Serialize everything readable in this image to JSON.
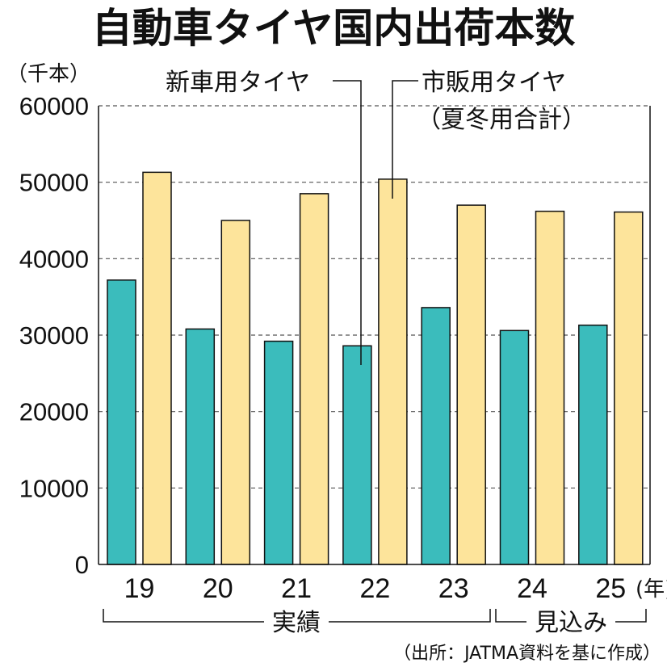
{
  "chart_data": {
    "type": "bar",
    "title": "自動車タイヤ国内出荷本数",
    "y_unit": "（千本）",
    "x_unit": "(年)",
    "categories": [
      "19",
      "20",
      "21",
      "22",
      "23",
      "24",
      "25"
    ],
    "series": [
      {
        "name": "新車用タイヤ",
        "color": "#3bbcbc",
        "values": [
          37200,
          30800,
          29200,
          28600,
          33600,
          30600,
          31300
        ]
      },
      {
        "name": "市販用タイヤ（夏冬用合計）",
        "color": "#fde49b",
        "values": [
          51300,
          45000,
          48500,
          50400,
          47000,
          46200,
          46100
        ]
      }
    ],
    "callouts": {
      "new_car": "新車用タイヤ",
      "replacement_1": "市販用タイヤ",
      "replacement_2": "（夏冬用合計）"
    },
    "groups": [
      {
        "label": "実績",
        "from": 0,
        "to": 4
      },
      {
        "label": "見込み",
        "from": 5,
        "to": 6
      }
    ],
    "ylim": [
      0,
      60000
    ],
    "yticks": [
      0,
      10000,
      20000,
      30000,
      40000,
      50000,
      60000
    ],
    "grid": true,
    "source": "（出所：JATMA資料を基に作成）"
  }
}
